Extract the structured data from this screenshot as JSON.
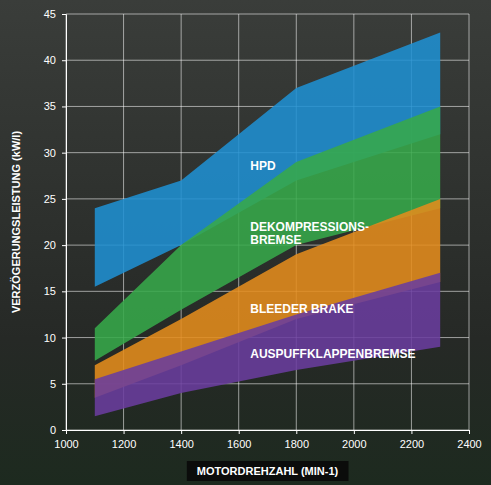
{
  "chart_data": {
    "type": "area",
    "x_label": "MOTORDREHZAHL (MIN-1)",
    "y_label": "VERZÖGERUNGSLEISTUNG (kW/l)",
    "x": [
      1100,
      1400,
      1800,
      2300
    ],
    "series": [
      {
        "name": "HPD",
        "color": "#1f8fd2",
        "values": [
          24,
          27,
          37,
          43
        ],
        "low": [
          15.5,
          20,
          27,
          32
        ]
      },
      {
        "name": "DEKOMPRESSIONS-BREMSE",
        "color": "#37a94a",
        "values": [
          11,
          20,
          29,
          35
        ],
        "low": [
          7.5,
          13,
          20,
          24
        ]
      },
      {
        "name": "BLEEDER BRAKE",
        "color": "#e48c1c",
        "values": [
          7,
          12,
          19,
          25
        ],
        "low": [
          3.5,
          7,
          12,
          16
        ]
      },
      {
        "name": "AUSPUFFKLAPPENBREMSE",
        "color": "#6a3c9e",
        "values": [
          5.5,
          8.5,
          12.5,
          17
        ],
        "low": [
          1.5,
          4,
          6.5,
          9
        ]
      }
    ],
    "xlim": [
      1000,
      2400
    ],
    "xticks": [
      1000,
      1200,
      1400,
      1600,
      1800,
      2000,
      2200,
      2400
    ],
    "ylim": [
      0,
      45
    ],
    "yticks": [
      0,
      5,
      10,
      15,
      20,
      25,
      30,
      35,
      40,
      45
    ],
    "grid": true
  }
}
